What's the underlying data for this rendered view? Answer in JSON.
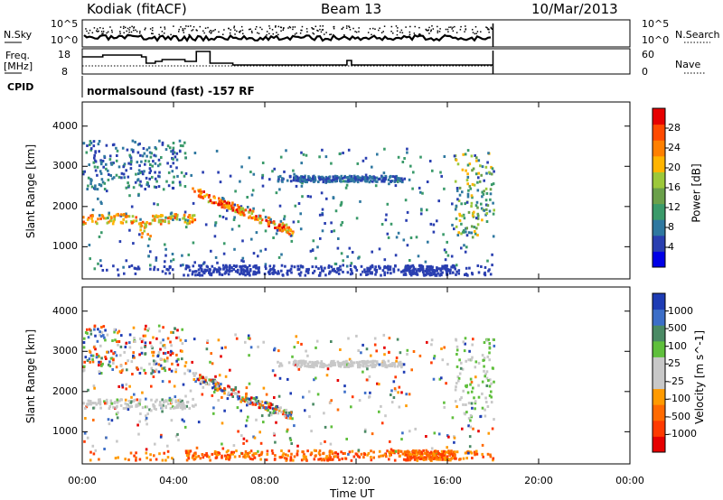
{
  "header": {
    "station": "Kodiak (fitACF)",
    "beam": "Beam 13",
    "date": "10/Mar/2013"
  },
  "noise_panel": {
    "left_label": "N.Sky",
    "right_label": "N.Search",
    "left_ticks": [
      "10^5",
      "10^0"
    ],
    "right_ticks": [
      "10^5",
      "10^0"
    ]
  },
  "freq_panel": {
    "left_label_line1": "Freq.",
    "left_label_line2": "[MHz]",
    "right_label": "Nave",
    "left_ticks": [
      "18",
      "8"
    ],
    "right_ticks": [
      "60",
      "0"
    ]
  },
  "cpid": {
    "label": "CPID",
    "value": "normalsound (fast) -157 RF"
  },
  "chart_data": [
    {
      "type": "heatmap",
      "quantity": "power",
      "ylabel": "Slant Range [km]",
      "ylim": [
        200,
        4600
      ],
      "yticks": [
        "1000",
        "2000",
        "3000",
        "4000"
      ],
      "xlim": [
        0,
        24
      ],
      "colorbar_label": "Power [dB]",
      "colorbar_ticks": [
        "28",
        "24",
        "20",
        "16",
        "12",
        "8",
        "4"
      ],
      "colors": [
        "#0000e6",
        "#2a3fb0",
        "#2f78a0",
        "#3a9a6a",
        "#6aa04a",
        "#9cc83a",
        "#ffb400",
        "#ff8000",
        "#ff4a00",
        "#e60000"
      ],
      "data_end_hour": 18.0
    },
    {
      "type": "heatmap",
      "quantity": "velocity",
      "ylabel": "Slant Range [km]",
      "ylim": [
        200,
        4600
      ],
      "yticks": [
        "1000",
        "2000",
        "3000",
        "4000"
      ],
      "xlim": [
        0,
        24
      ],
      "colorbar_label": "Velocity [m s^-1]",
      "colorbar_ticks": [
        "1000",
        "500",
        "100",
        "25",
        "-25",
        "-100",
        "-500",
        "-1000"
      ],
      "colors": [
        "#1e3cb4",
        "#3c6ec8",
        "#4a8a64",
        "#5fbf3c",
        "#c8c8c8",
        "#c8c8c8",
        "#ff9a00",
        "#ff6a00",
        "#ff3a00",
        "#e60000"
      ],
      "data_end_hour": 18.0
    }
  ],
  "xaxis": {
    "label": "Time UT",
    "ticks": [
      "00:00",
      "04:00",
      "08:00",
      "12:00",
      "16:00",
      "20:00",
      "00:00"
    ]
  }
}
